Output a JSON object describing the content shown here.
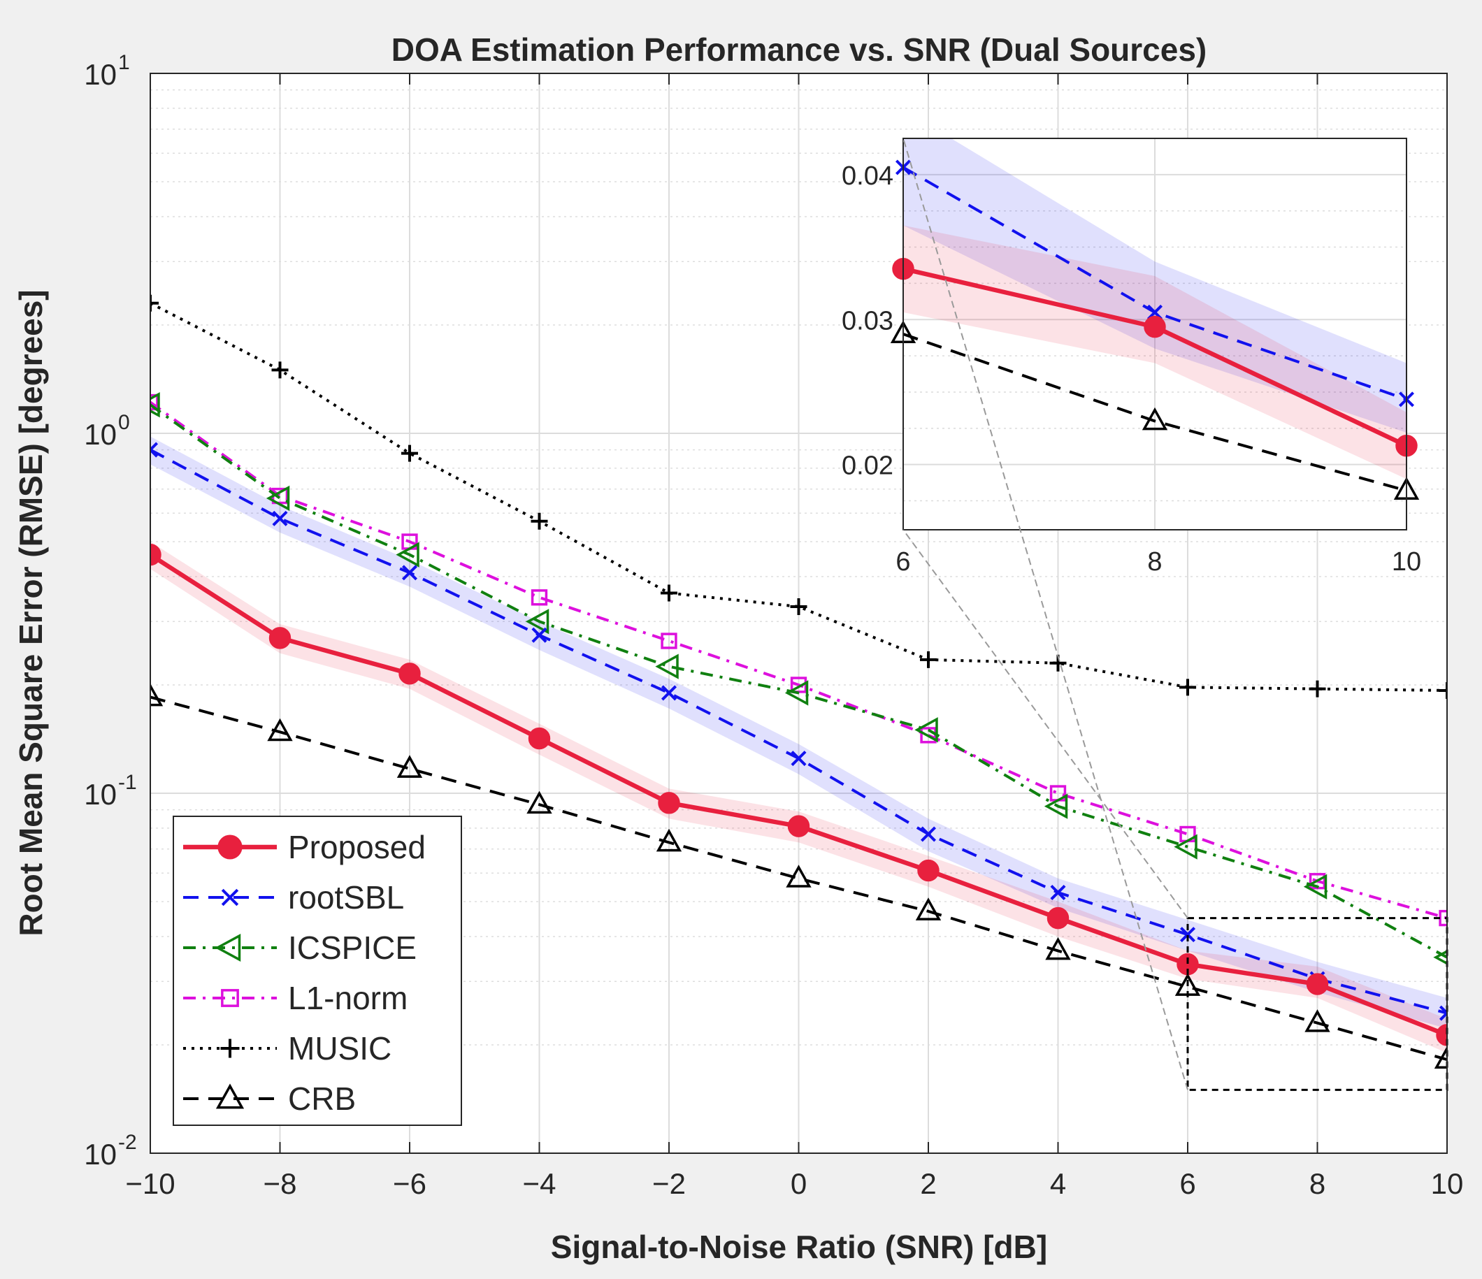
{
  "chart_data": {
    "type": "line",
    "title": "DOA Estimation Performance vs. SNR (Dual Sources)",
    "xlabel": "Signal-to-Noise Ratio (SNR) [dB]",
    "ylabel": "Root Mean Square Error (RMSE) [degrees]",
    "yscale": "log",
    "xlim": [
      -10,
      10
    ],
    "ylim": [
      0.01,
      10
    ],
    "grid": true,
    "legend_position": "bottom-left",
    "x": [
      -10,
      -8,
      -6,
      -4,
      -2,
      0,
      2,
      4,
      6,
      8,
      10
    ],
    "x_tick_labels": [
      "−10",
      "−8",
      "−6",
      "−4",
      "−2",
      "0",
      "2",
      "4",
      "6",
      "8",
      "10"
    ],
    "y_tick_labels": [
      {
        "base": "10",
        "exp": "-2"
      },
      {
        "base": "10",
        "exp": "-1"
      },
      {
        "base": "10",
        "exp": "0"
      },
      {
        "base": "10",
        "exp": "1"
      }
    ],
    "series": [
      {
        "name": "Proposed",
        "color": "#e8203e",
        "line": "solid",
        "marker": "circle",
        "values": [
          0.46,
          0.27,
          0.215,
          0.142,
          0.094,
          0.081,
          0.061,
          0.045,
          0.0335,
          0.0295,
          0.0213
        ],
        "band_lower": [
          0.42,
          0.245,
          0.195,
          0.128,
          0.085,
          0.073,
          0.055,
          0.04,
          0.0305,
          0.027,
          0.019
        ],
        "band_upper": [
          0.5,
          0.295,
          0.235,
          0.156,
          0.103,
          0.089,
          0.067,
          0.05,
          0.0365,
          0.033,
          0.0236
        ]
      },
      {
        "name": "rootSBL",
        "color": "#1111ee",
        "line": "dashed",
        "marker": "x",
        "values": [
          0.9,
          0.58,
          0.41,
          0.275,
          0.19,
          0.125,
          0.077,
          0.053,
          0.0405,
          0.0305,
          0.0245
        ],
        "band_lower": [
          0.82,
          0.53,
          0.375,
          0.25,
          0.172,
          0.113,
          0.069,
          0.048,
          0.0365,
          0.028,
          0.0222
        ],
        "band_upper": [
          0.98,
          0.63,
          0.445,
          0.3,
          0.208,
          0.137,
          0.085,
          0.058,
          0.0445,
          0.034,
          0.027
        ]
      },
      {
        "name": "ICSPICE",
        "color": "#108010",
        "line": "dashdot",
        "marker": "triangle-left",
        "values": [
          1.2,
          0.66,
          0.46,
          0.3,
          0.225,
          0.19,
          0.15,
          0.092,
          0.071,
          0.055,
          0.035
        ]
      },
      {
        "name": "L1-norm",
        "color": "#dd10dd",
        "line": "dashdot",
        "marker": "square",
        "values": [
          1.22,
          0.67,
          0.5,
          0.35,
          0.265,
          0.2,
          0.145,
          0.1,
          0.077,
          0.057,
          0.045
        ]
      },
      {
        "name": "MUSIC",
        "color": "#000000",
        "line": "dotted",
        "marker": "plus",
        "values": [
          2.3,
          1.5,
          0.88,
          0.57,
          0.36,
          0.33,
          0.235,
          0.23,
          0.197,
          0.195,
          0.193
        ]
      },
      {
        "name": "CRB",
        "color": "#000000",
        "line": "dashed",
        "marker": "triangle-up",
        "values": [
          0.185,
          0.148,
          0.117,
          0.093,
          0.073,
          0.058,
          0.047,
          0.0365,
          0.029,
          0.023,
          0.0182
        ]
      }
    ],
    "inset": {
      "xlim": [
        6,
        10
      ],
      "ylim": [
        0.0155,
        0.0425
      ],
      "yscale": "linear",
      "x_ticks": [
        6,
        8,
        10
      ],
      "x_tick_labels": [
        "6",
        "8",
        "10"
      ],
      "y_ticks": [
        0.02,
        0.03,
        0.04
      ],
      "y_tick_labels": [
        "0.02",
        "0.03",
        "0.04"
      ],
      "series_shown": [
        "Proposed",
        "rootSBL",
        "CRB"
      ],
      "zoom_box": {
        "x": [
          6,
          10
        ],
        "y": [
          0.015,
          0.045
        ]
      }
    }
  }
}
